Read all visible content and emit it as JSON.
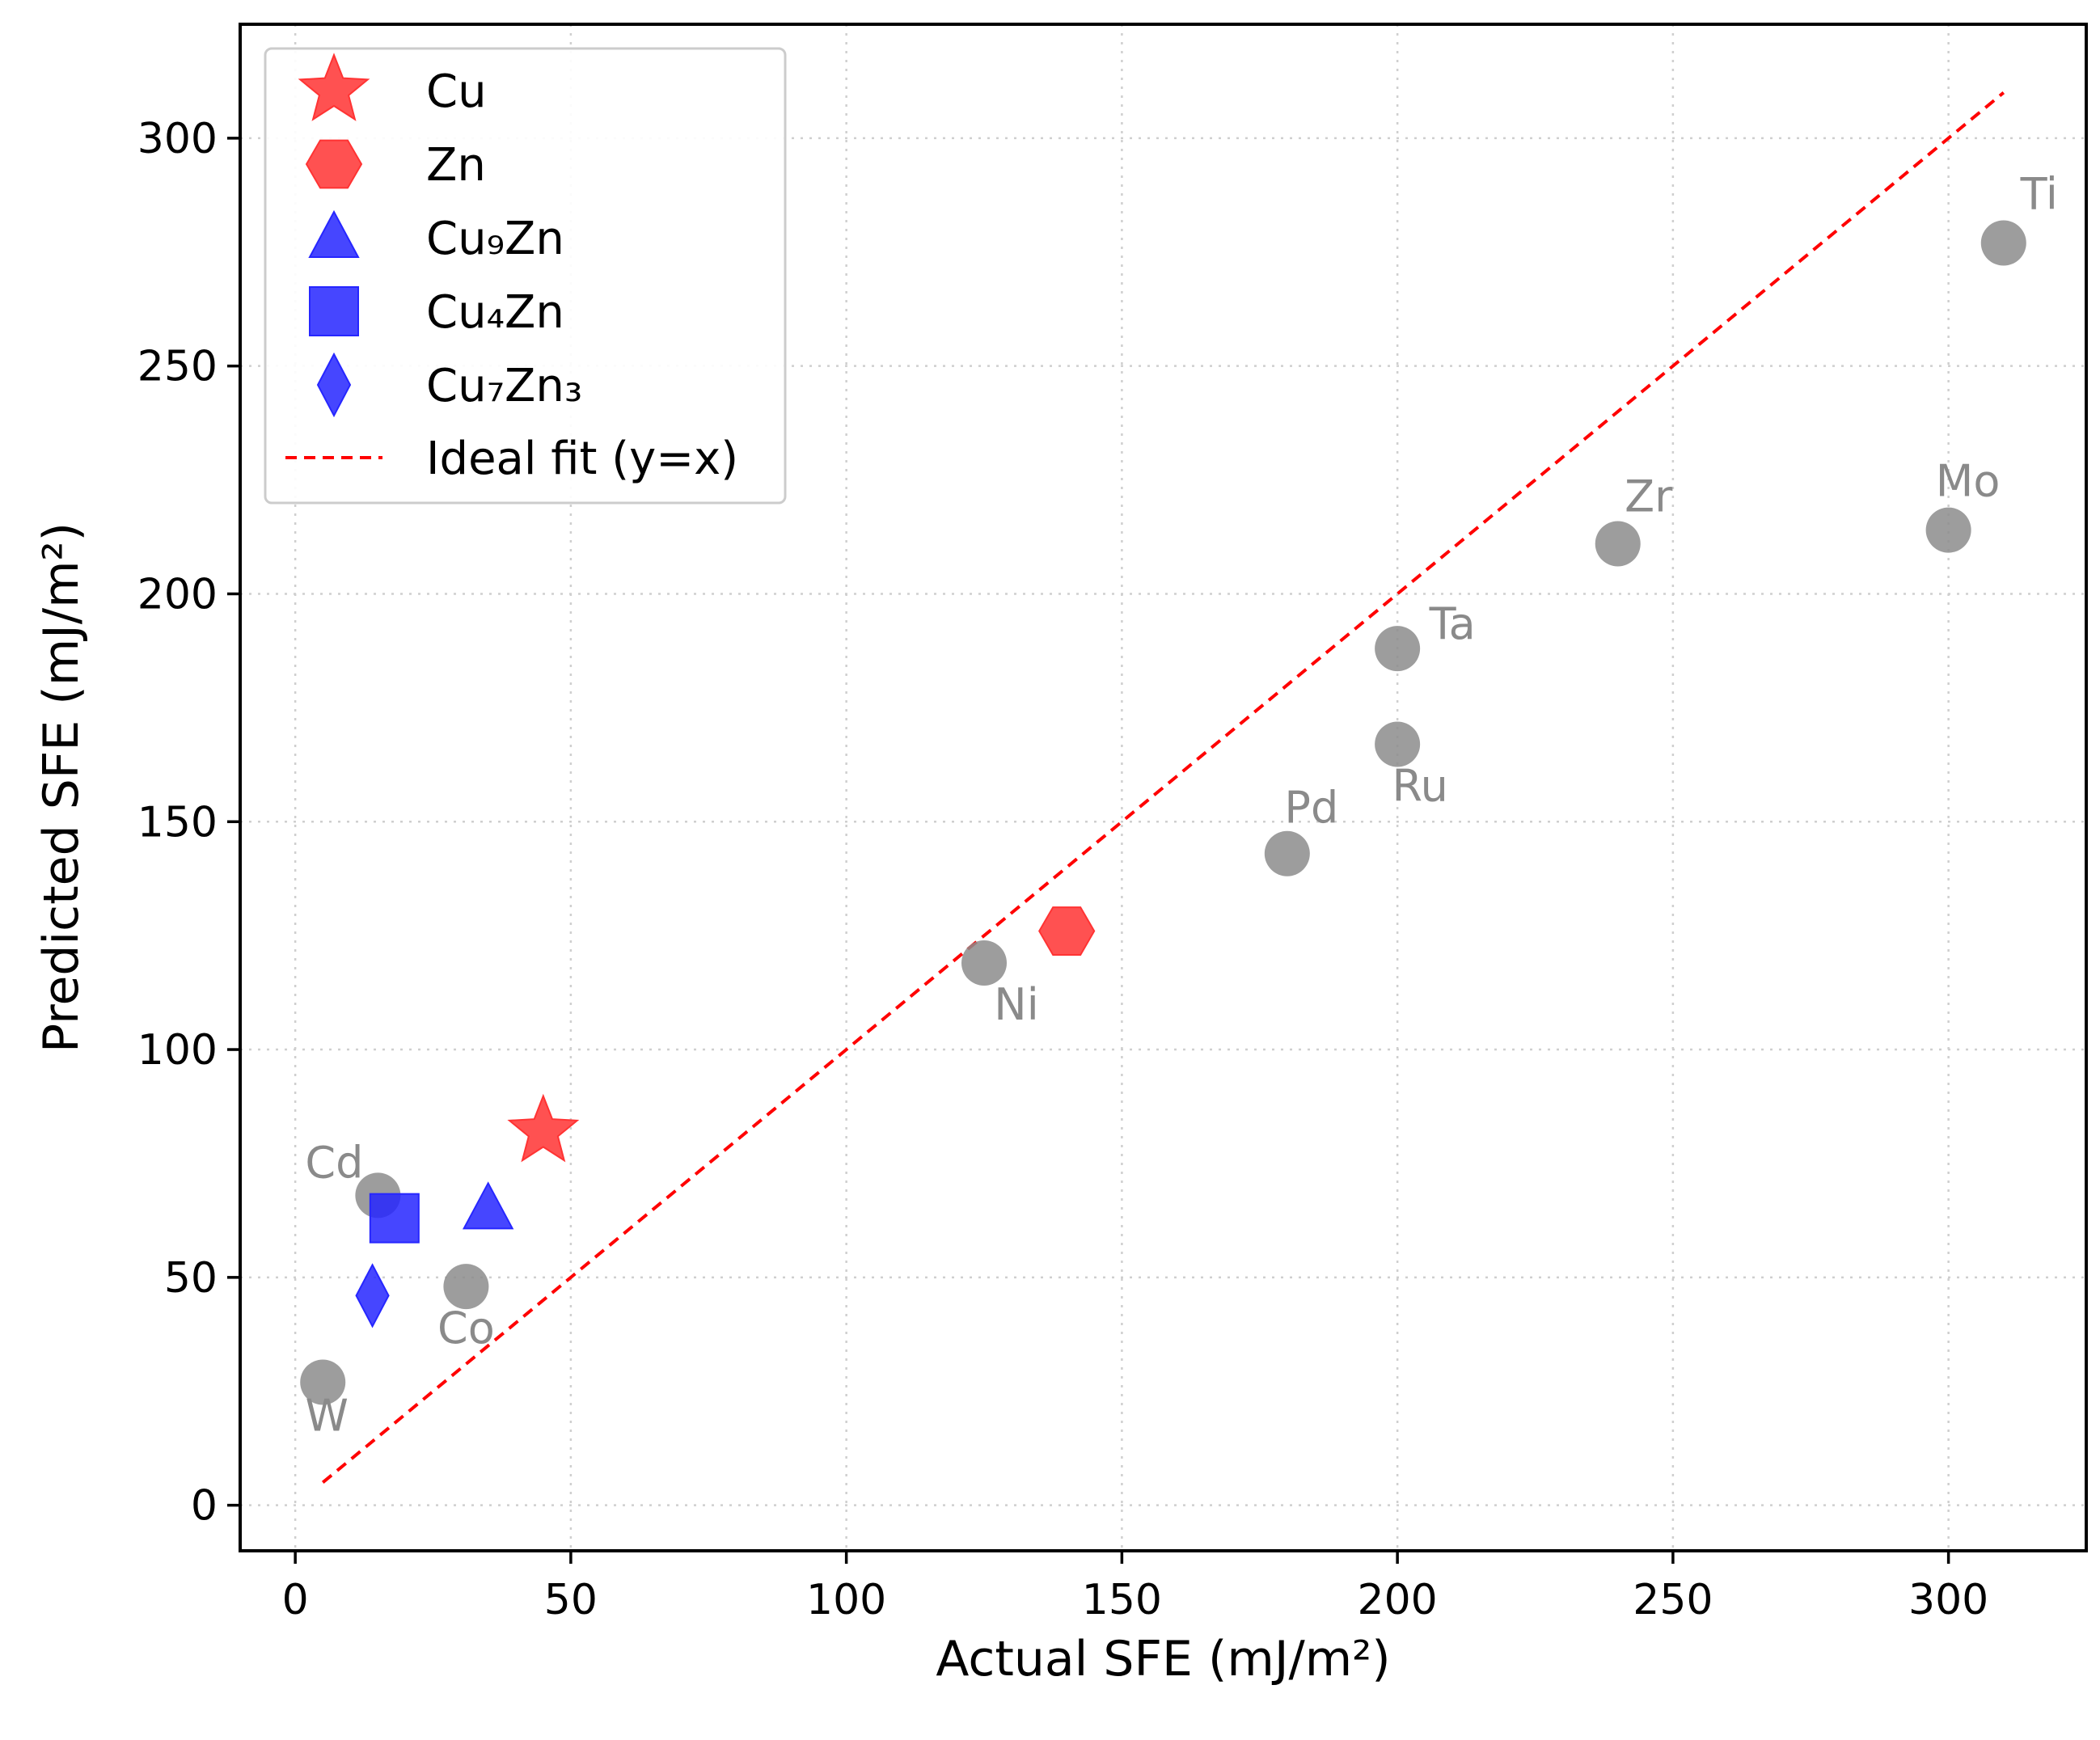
{
  "chart_data": {
    "type": "scatter",
    "title": "",
    "xlabel": "Actual SFE (mJ/m²)",
    "ylabel": "Predicted SFE (mJ/m²)",
    "xlim": [
      -10,
      325
    ],
    "ylim": [
      -10,
      325
    ],
    "xticks": [
      0,
      50,
      100,
      150,
      200,
      250,
      300
    ],
    "yticks": [
      0,
      50,
      100,
      150,
      200,
      250,
      300
    ],
    "grid": true,
    "legend_position": "top-left",
    "colors": {
      "reference": "#8c8c8c",
      "red": "#ff3333",
      "blue": "#2626ff",
      "fit_line": "#ff0000"
    },
    "reference_points": [
      {
        "name": "W",
        "x": 5,
        "y": 27
      },
      {
        "name": "Cd",
        "x": 15,
        "y": 68
      },
      {
        "name": "Co",
        "x": 31,
        "y": 48
      },
      {
        "name": "Ni",
        "x": 125,
        "y": 119
      },
      {
        "name": "Pd",
        "x": 180,
        "y": 143
      },
      {
        "name": "Ru",
        "x": 200,
        "y": 167
      },
      {
        "name": "Ta",
        "x": 200,
        "y": 188
      },
      {
        "name": "Zr",
        "x": 240,
        "y": 211
      },
      {
        "name": "Mo",
        "x": 300,
        "y": 214
      },
      {
        "name": "Ti",
        "x": 310,
        "y": 277
      }
    ],
    "series": [
      {
        "name": "Cu",
        "legend_label": "Cu",
        "marker": "star",
        "color": "red",
        "x": 45,
        "y": 82
      },
      {
        "name": "Zn",
        "legend_label": "Zn",
        "marker": "hexagon",
        "color": "red",
        "x": 140,
        "y": 126
      },
      {
        "name": "Cu9Zn",
        "legend_label": "Cu₉Zn",
        "marker": "triangle",
        "color": "blue",
        "x": 35,
        "y": 65
      },
      {
        "name": "Cu4Zn",
        "legend_label": "Cu₄Zn",
        "marker": "square",
        "color": "blue",
        "x": 18,
        "y": 63
      },
      {
        "name": "Cu7Zn3",
        "legend_label": "Cu₇Zn₃",
        "marker": "diamond",
        "color": "blue",
        "x": 14,
        "y": 46
      }
    ],
    "ideal_fit": {
      "legend_label": "Ideal fit (y=x)",
      "x": [
        5,
        310
      ],
      "y": [
        5,
        310
      ]
    }
  }
}
